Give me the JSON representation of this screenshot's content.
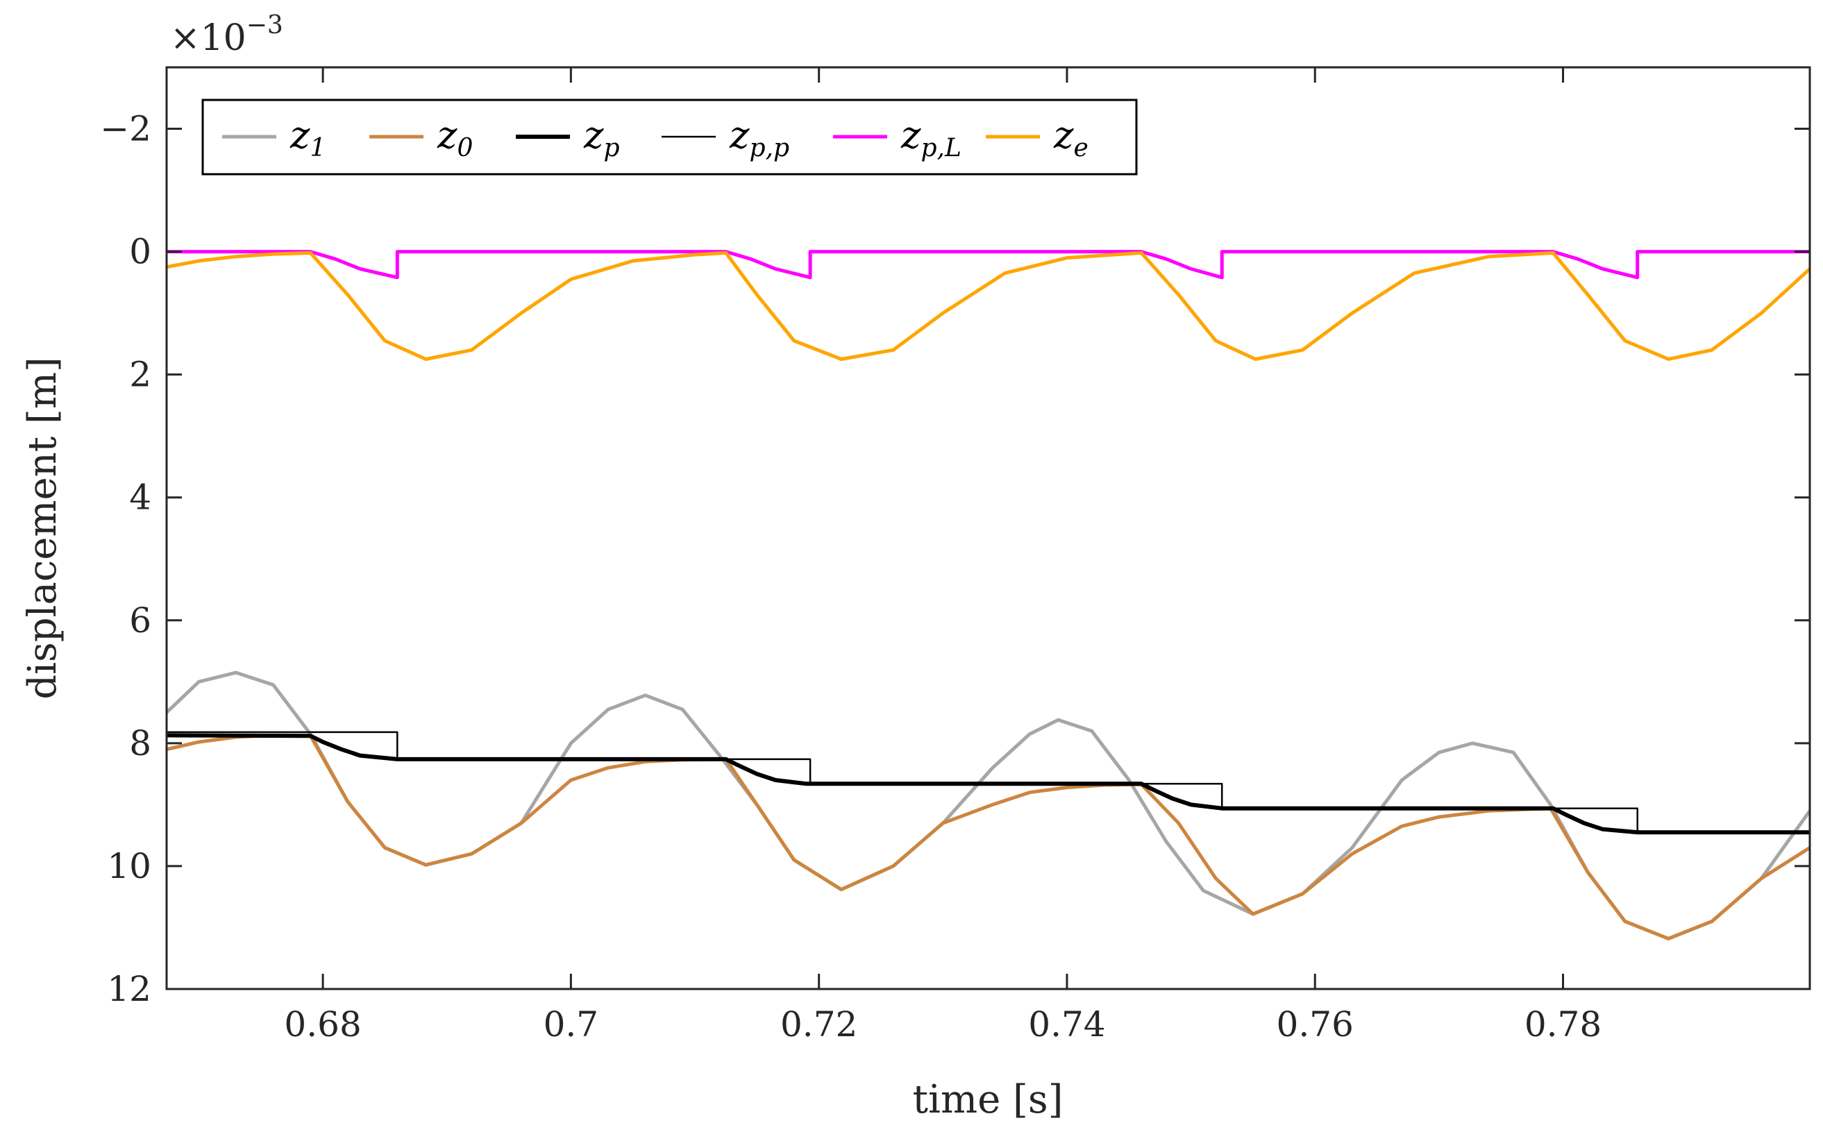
{
  "chart_data": {
    "type": "line",
    "title": "",
    "xlabel": "time [s]",
    "ylabel": "displacement [m]",
    "y_scale_label": "×10",
    "y_scale_exponent": "−3",
    "xlim": [
      0.6674,
      0.7999
    ],
    "ylim": [
      -3,
      12
    ],
    "y_reversed": true,
    "xticks": [
      0.68,
      0.7,
      0.72,
      0.74,
      0.76,
      0.78
    ],
    "xtick_labels": [
      "0.68",
      "0.7",
      "0.72",
      "0.74",
      "0.76",
      "0.78"
    ],
    "yticks": [
      -2,
      0,
      2,
      4,
      6,
      8,
      10,
      12
    ],
    "ytick_labels": [
      "−2",
      "0",
      "2",
      "4",
      "6",
      "8",
      "10",
      "12"
    ],
    "grid": false,
    "legend_position": "top-left",
    "series": [
      {
        "name": "z_1",
        "label_main": "z",
        "label_sub": "1",
        "color": "#a6a6a6",
        "width": 5,
        "x": [
          0.6674,
          0.67,
          0.673,
          0.676,
          0.679,
          0.682,
          0.685,
          0.6883,
          0.692,
          0.696,
          0.7,
          0.703,
          0.706,
          0.709,
          0.712,
          0.715,
          0.718,
          0.7218,
          0.726,
          0.73,
          0.734,
          0.737,
          0.7393,
          0.742,
          0.745,
          0.748,
          0.751,
          0.755,
          0.759,
          0.763,
          0.767,
          0.77,
          0.7727,
          0.776,
          0.779,
          0.782,
          0.785,
          0.7885,
          0.792,
          0.796,
          0.7999
        ],
        "y": [
          7.5,
          7.0,
          6.85,
          7.05,
          7.85,
          8.95,
          9.7,
          9.98,
          9.8,
          9.3,
          8.0,
          7.45,
          7.22,
          7.45,
          8.2,
          9.0,
          9.9,
          10.38,
          10.0,
          9.3,
          8.4,
          7.85,
          7.62,
          7.8,
          8.6,
          9.6,
          10.4,
          10.78,
          10.45,
          9.7,
          8.6,
          8.15,
          8.0,
          8.15,
          9.0,
          10.1,
          10.9,
          11.18,
          10.9,
          10.2,
          9.1
        ]
      },
      {
        "name": "z_0",
        "label_main": "z",
        "label_sub": "0",
        "color": "#cd853f",
        "width": 5,
        "x": [
          0.6674,
          0.67,
          0.673,
          0.676,
          0.679,
          0.682,
          0.685,
          0.6883,
          0.692,
          0.696,
          0.7,
          0.703,
          0.706,
          0.709,
          0.7125,
          0.715,
          0.718,
          0.7218,
          0.726,
          0.73,
          0.734,
          0.737,
          0.74,
          0.743,
          0.746,
          0.749,
          0.752,
          0.755,
          0.759,
          0.763,
          0.767,
          0.77,
          0.774,
          0.779,
          0.782,
          0.785,
          0.7885,
          0.792,
          0.796,
          0.7999
        ],
        "y": [
          8.1,
          7.98,
          7.9,
          7.87,
          7.88,
          8.95,
          9.7,
          9.98,
          9.8,
          9.3,
          8.6,
          8.4,
          8.3,
          8.27,
          8.26,
          9.0,
          9.9,
          10.38,
          10.0,
          9.3,
          9.0,
          8.8,
          8.72,
          8.68,
          8.67,
          9.3,
          10.2,
          10.78,
          10.45,
          9.8,
          9.35,
          9.2,
          9.1,
          9.06,
          10.1,
          10.9,
          11.18,
          10.9,
          10.2,
          9.7
        ]
      },
      {
        "name": "z_p",
        "label_main": "z",
        "label_sub": "p",
        "color": "#000000",
        "width": 6,
        "x": [
          0.6674,
          0.679,
          0.68,
          0.6815,
          0.683,
          0.686,
          0.7125,
          0.7135,
          0.715,
          0.7165,
          0.719,
          0.746,
          0.747,
          0.7485,
          0.75,
          0.7525,
          0.7792,
          0.7802,
          0.7817,
          0.7832,
          0.786,
          0.7999
        ],
        "y": [
          7.87,
          7.88,
          7.98,
          8.1,
          8.2,
          8.26,
          8.26,
          8.36,
          8.5,
          8.6,
          8.66,
          8.66,
          8.76,
          8.9,
          9.0,
          9.06,
          9.06,
          9.16,
          9.3,
          9.4,
          9.45,
          9.45
        ]
      },
      {
        "name": "z_p,p",
        "label_main": "z",
        "label_sub": "p,p",
        "color": "#000000",
        "width": 2.5,
        "x": [
          0.6674,
          0.686,
          0.686,
          0.7193,
          0.7193,
          0.7525,
          0.7525,
          0.786,
          0.786,
          0.7999
        ],
        "y": [
          7.82,
          7.82,
          8.26,
          8.26,
          8.66,
          8.66,
          9.06,
          9.06,
          9.45,
          9.45
        ]
      },
      {
        "name": "z_p,L",
        "label_main": "z",
        "label_sub": "p,L",
        "color": "#ff00ff",
        "width": 5,
        "x": [
          0.6674,
          0.679,
          0.681,
          0.683,
          0.686,
          0.686,
          0.7125,
          0.7145,
          0.7165,
          0.7193,
          0.7193,
          0.746,
          0.748,
          0.75,
          0.7525,
          0.7525,
          0.7792,
          0.7812,
          0.7832,
          0.786,
          0.786,
          0.7999
        ],
        "y": [
          0.0,
          0.0,
          0.12,
          0.28,
          0.42,
          0.0,
          0.0,
          0.12,
          0.28,
          0.42,
          0.0,
          0.0,
          0.12,
          0.28,
          0.42,
          0.0,
          0.0,
          0.12,
          0.28,
          0.42,
          0.0,
          0.0
        ]
      },
      {
        "name": "z_e",
        "label_main": "z",
        "label_sub": "e",
        "color": "#ffa500",
        "width": 5,
        "x": [
          0.6674,
          0.67,
          0.673,
          0.676,
          0.679,
          0.682,
          0.685,
          0.6883,
          0.692,
          0.696,
          0.7,
          0.705,
          0.71,
          0.7125,
          0.715,
          0.718,
          0.7218,
          0.726,
          0.73,
          0.735,
          0.74,
          0.746,
          0.749,
          0.752,
          0.7552,
          0.759,
          0.763,
          0.768,
          0.774,
          0.7792,
          0.782,
          0.785,
          0.7885,
          0.792,
          0.796,
          0.7999
        ],
        "y": [
          0.25,
          0.15,
          0.08,
          0.04,
          0.02,
          0.7,
          1.45,
          1.75,
          1.6,
          1.0,
          0.45,
          0.15,
          0.05,
          0.02,
          0.7,
          1.45,
          1.75,
          1.6,
          1.0,
          0.35,
          0.1,
          0.02,
          0.7,
          1.45,
          1.75,
          1.6,
          1.0,
          0.35,
          0.08,
          0.02,
          0.7,
          1.45,
          1.75,
          1.6,
          1.0,
          0.28
        ]
      }
    ]
  }
}
